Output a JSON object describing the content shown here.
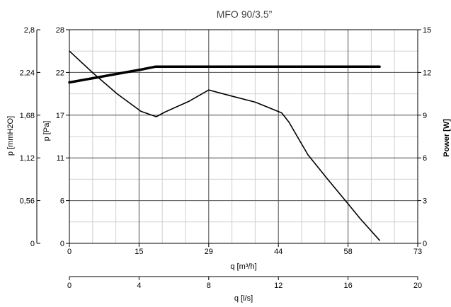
{
  "chart_data": {
    "type": "line",
    "title": "MFO 90/3.5”",
    "xlabel": "q [m³/h]",
    "x2label": "q [l/s]",
    "ylabel": "p [Pa]",
    "y2label": "p [mmH2O]",
    "y3label": "Power [W]",
    "xlim": [
      0,
      73
    ],
    "ylim": [
      0,
      28
    ],
    "y2lim": [
      0,
      2.8
    ],
    "y3lim": [
      0,
      15
    ],
    "x2lim": [
      0,
      20
    ],
    "xticks": [
      "0",
      "15",
      "29",
      "44",
      "58",
      "73"
    ],
    "x2ticks": [
      "0",
      "4",
      "8",
      "12",
      "16",
      "20"
    ],
    "yticks": [
      "0",
      "6",
      "11",
      "17",
      "22",
      "28"
    ],
    "y2ticks": [
      "0",
      "0,56",
      "1,12",
      "1,68",
      "2,24",
      "2,8"
    ],
    "y3ticks": [
      "0",
      "3",
      "6",
      "9",
      "12",
      "15"
    ],
    "grid": true,
    "series": [
      {
        "axis": "pressure",
        "color": "#000000",
        "x": [
          0,
          5,
          10,
          15,
          18.2,
          20,
          25,
          29.2,
          34,
          39,
          44.5,
          46,
          50,
          54,
          58.5,
          61,
          65
        ],
        "values": [
          25.2,
          22.3,
          19.6,
          17.3,
          16.6,
          17.2,
          18.6,
          20.1,
          19.3,
          18.5,
          17.1,
          15.9,
          11.6,
          8.5,
          5.1,
          3.2,
          0.4
        ]
      },
      {
        "axis": "power",
        "color": "#000000",
        "x": [
          0,
          5,
          10,
          15,
          18,
          22,
          30,
          40,
          50,
          60,
          65
        ],
        "values": [
          11.3,
          11.6,
          11.9,
          12.2,
          12.4,
          12.4,
          12.4,
          12.4,
          12.4,
          12.4,
          12.4
        ]
      }
    ]
  }
}
